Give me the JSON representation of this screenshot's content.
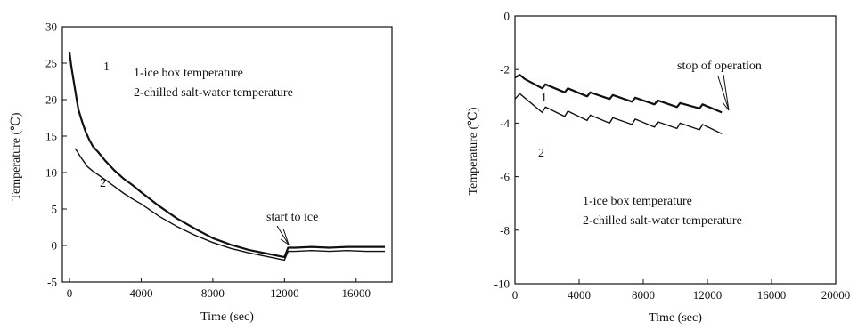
{
  "chart_data": [
    {
      "type": "line",
      "title": "",
      "xlabel": "Time (sec)",
      "ylabel": "Temperature (℃)",
      "xlim": [
        -400,
        18000
      ],
      "ylim": [
        -5,
        30
      ],
      "xticks": [
        0,
        4000,
        8000,
        12000,
        16000
      ],
      "yticks": [
        -5,
        0,
        5,
        10,
        15,
        20,
        25,
        30
      ],
      "legend_text": [
        "1-ice box temperature",
        "2-chilled salt-water temperature"
      ],
      "curve_labels": [
        "1",
        "2"
      ],
      "annotations": [
        {
          "text": "start to ice",
          "x": 12200,
          "y": 0.0
        }
      ],
      "series": [
        {
          "name": "1",
          "x": [
            0,
            100,
            200,
            300,
            400,
            500,
            700,
            900,
            1100,
            1300,
            1600,
            2000,
            2500,
            3000,
            3500,
            4000,
            5000,
            6000,
            7000,
            8000,
            9000,
            10000,
            11000,
            12000,
            12200,
            12600,
            13500,
            14500,
            15500,
            16500,
            17600
          ],
          "y": [
            26.5,
            24.5,
            23.0,
            21.5,
            20.0,
            18.6,
            17.0,
            15.6,
            14.5,
            13.6,
            12.8,
            11.6,
            10.3,
            9.2,
            8.3,
            7.3,
            5.4,
            3.7,
            2.3,
            1.0,
            0.1,
            -0.6,
            -1.1,
            -1.6,
            -0.3,
            -0.3,
            -0.2,
            -0.3,
            -0.2,
            -0.2,
            -0.2
          ]
        },
        {
          "name": "2",
          "x": [
            300,
            400,
            600,
            800,
            1000,
            1300,
            1600,
            2000,
            2500,
            3000,
            3500,
            4000,
            5000,
            6000,
            7000,
            8000,
            9000,
            10000,
            11000,
            12000,
            12200,
            12600,
            13500,
            14500,
            15500,
            16500,
            17600
          ],
          "y": [
            13.3,
            13.0,
            12.2,
            11.5,
            10.8,
            10.2,
            9.7,
            9.0,
            8.1,
            7.2,
            6.4,
            5.7,
            4.0,
            2.6,
            1.4,
            0.4,
            -0.4,
            -1.0,
            -1.5,
            -2.0,
            -0.8,
            -0.8,
            -0.7,
            -0.8,
            -0.7,
            -0.8,
            -0.8
          ]
        }
      ]
    },
    {
      "type": "line",
      "title": "",
      "xlabel": "Time (sec)",
      "ylabel": "Temperature (℃)",
      "xlim": [
        0,
        20000
      ],
      "ylim": [
        -10,
        0
      ],
      "xticks": [
        0,
        4000,
        8000,
        12000,
        16000,
        20000
      ],
      "yticks": [
        -10,
        -8,
        -6,
        -4,
        -2,
        0
      ],
      "legend_text": [
        "1-ice box temperature",
        "2-chilled salt-water temperature"
      ],
      "curve_labels": [
        "1",
        "2"
      ],
      "annotations": [
        {
          "text": "stop of operation",
          "x": 13000,
          "y": -3.6
        }
      ],
      "series": [
        {
          "name": "1",
          "x": [
            0,
            300,
            600,
            1700,
            1900,
            3100,
            3300,
            4500,
            4700,
            5900,
            6100,
            7300,
            7500,
            8700,
            8900,
            10100,
            10300,
            11500,
            11700,
            12900
          ],
          "y": [
            -2.3,
            -2.2,
            -2.35,
            -2.7,
            -2.55,
            -2.85,
            -2.7,
            -3.0,
            -2.85,
            -3.1,
            -2.95,
            -3.2,
            -3.05,
            -3.3,
            -3.15,
            -3.4,
            -3.25,
            -3.45,
            -3.3,
            -3.6
          ]
        },
        {
          "name": "2",
          "x": [
            0,
            300,
            600,
            1700,
            1900,
            3100,
            3300,
            4500,
            4700,
            5900,
            6100,
            7300,
            7500,
            8700,
            8900,
            10100,
            10300,
            11500,
            11700,
            12900
          ],
          "y": [
            -3.1,
            -2.9,
            -3.05,
            -3.6,
            -3.4,
            -3.75,
            -3.55,
            -3.9,
            -3.7,
            -4.0,
            -3.8,
            -4.05,
            -3.85,
            -4.15,
            -3.95,
            -4.2,
            -4.0,
            -4.25,
            -4.05,
            -4.4
          ]
        }
      ]
    }
  ]
}
